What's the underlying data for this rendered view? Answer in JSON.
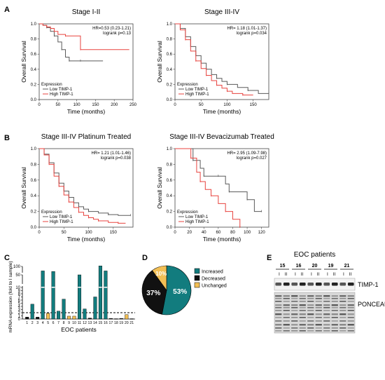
{
  "panel_labels": [
    "A",
    "B",
    "C",
    "D",
    "E"
  ],
  "km_legend": {
    "title": "Expression",
    "low": "Low TIMP-1",
    "high": "High TIMP-1"
  },
  "colors": {
    "low": "#5a5a5a",
    "high": "#e8433f",
    "teal": "#127c7e",
    "black": "#111111",
    "yellow": "#f2bf55"
  },
  "km_panels": [
    {
      "title": "Stage I-II",
      "hr": "HR=0.53 (0.23-1.21)",
      "p": "logrank p=0.13",
      "xlabel": "Time (months)",
      "ylabel": "Overall Survival",
      "xticks": [
        "0",
        "50",
        "100",
        "150",
        "200",
        "250"
      ],
      "yticks": [
        "0.0",
        "0.2",
        "0.4",
        "0.6",
        "0.8",
        "1.0"
      ]
    },
    {
      "title": "Stage III-IV",
      "hr": "HR= 1.18 (1.01-1.37)",
      "p": "logrank p=0.034",
      "xlabel": "Time (months)",
      "ylabel": "Overall Survival",
      "xticks": [
        "0",
        "50",
        "100",
        "150"
      ],
      "yticks": [
        "0.0",
        "0.2",
        "0.4",
        "0.6",
        "0.8",
        "1.0"
      ]
    },
    {
      "title": "Stage III-IV   Platinum Treated",
      "hr": "HR= 1.21 (1.01-1.46)",
      "p": "logrank p=0.038",
      "xlabel": "Time (months)",
      "ylabel": "Overall Survival",
      "xticks": [
        "0",
        "50",
        "100",
        "150"
      ],
      "yticks": [
        "0.0",
        "0.2",
        "0.4",
        "0.6",
        "0.8",
        "1.0"
      ]
    },
    {
      "title": "Stage III-IV   Bevacizumab Treated",
      "hr": "HR= 2.95 (1.09-7.98)",
      "p": "logrank p=0.027",
      "xlabel": "Time (months)",
      "ylabel": "Overall Survival",
      "xticks": [
        "0",
        "20",
        "40",
        "60",
        "80",
        "100",
        "120"
      ],
      "yticks": [
        "0.0",
        "0.2",
        "0.4",
        "0.6",
        "0.8",
        "1.0"
      ]
    }
  ],
  "chart_data": [
    {
      "type": "line",
      "title": "Stage I-II",
      "xlabel": "Time (months)",
      "ylabel": "Overall Survival",
      "xlim": [
        0,
        250
      ],
      "ylim": [
        0,
        1
      ],
      "series": [
        {
          "name": "Low TIMP-1",
          "x": [
            0,
            10,
            20,
            30,
            40,
            50,
            60,
            70,
            80,
            90,
            110,
            170
          ],
          "y": [
            1.0,
            0.98,
            0.95,
            0.9,
            0.84,
            0.76,
            0.66,
            0.56,
            0.51,
            0.51,
            0.51,
            0.51
          ]
        },
        {
          "name": "High TIMP-1",
          "x": [
            0,
            10,
            20,
            30,
            40,
            50,
            70,
            100,
            110,
            240
          ],
          "y": [
            1.0,
            0.98,
            0.96,
            0.94,
            0.9,
            0.86,
            0.84,
            0.84,
            0.66,
            0.66
          ]
        }
      ]
    },
    {
      "type": "line",
      "title": "Stage III-IV",
      "xlabel": "Time (months)",
      "ylabel": "Overall Survival",
      "xlim": [
        0,
        180
      ],
      "ylim": [
        0,
        1
      ],
      "series": [
        {
          "name": "Low TIMP-1",
          "x": [
            0,
            10,
            20,
            30,
            40,
            50,
            60,
            70,
            80,
            90,
            100,
            120,
            140,
            160,
            180
          ],
          "y": [
            1.0,
            0.94,
            0.83,
            0.7,
            0.58,
            0.48,
            0.4,
            0.33,
            0.28,
            0.24,
            0.2,
            0.16,
            0.12,
            0.08,
            0.08
          ]
        },
        {
          "name": "High TIMP-1",
          "x": [
            0,
            10,
            20,
            30,
            40,
            50,
            60,
            70,
            80,
            90,
            100,
            110,
            130,
            150
          ],
          "y": [
            1.0,
            0.92,
            0.79,
            0.64,
            0.51,
            0.41,
            0.32,
            0.25,
            0.19,
            0.15,
            0.11,
            0.08,
            0.06,
            0.06
          ]
        }
      ]
    },
    {
      "type": "line",
      "title": "Stage III-IV   Platinum Treated",
      "xlabel": "Time (months)",
      "ylabel": "Overall Survival",
      "xlim": [
        0,
        190
      ],
      "ylim": [
        0,
        1
      ],
      "series": [
        {
          "name": "Low TIMP-1",
          "x": [
            0,
            10,
            20,
            30,
            40,
            50,
            60,
            70,
            80,
            90,
            100,
            120,
            140,
            160,
            185
          ],
          "y": [
            1.0,
            0.93,
            0.82,
            0.69,
            0.56,
            0.46,
            0.38,
            0.31,
            0.26,
            0.23,
            0.2,
            0.18,
            0.16,
            0.15,
            0.15
          ]
        },
        {
          "name": "High TIMP-1",
          "x": [
            0,
            10,
            20,
            30,
            40,
            50,
            60,
            70,
            80,
            90,
            100,
            110,
            120,
            140,
            160,
            175
          ],
          "y": [
            1.0,
            0.92,
            0.8,
            0.65,
            0.52,
            0.41,
            0.32,
            0.25,
            0.19,
            0.15,
            0.12,
            0.1,
            0.08,
            0.06,
            0.05,
            0.05
          ]
        }
      ]
    },
    {
      "type": "line",
      "title": "Stage III-IV   Bevacizumab Treated",
      "xlabel": "Time (months)",
      "ylabel": "Overall Survival",
      "xlim": [
        0,
        130
      ],
      "ylim": [
        0,
        1
      ],
      "series": [
        {
          "name": "Low TIMP-1",
          "x": [
            0,
            20,
            25,
            35,
            40,
            50,
            60,
            70,
            75,
            90,
            100,
            110,
            120
          ],
          "y": [
            1.0,
            1.0,
            0.85,
            0.75,
            0.65,
            0.65,
            0.65,
            0.55,
            0.45,
            0.45,
            0.35,
            0.2,
            0.2
          ]
        },
        {
          "name": "High TIMP-1",
          "x": [
            0,
            15,
            22,
            30,
            35,
            42,
            50,
            60,
            70,
            80,
            90
          ],
          "y": [
            1.0,
            1.0,
            0.88,
            0.7,
            0.58,
            0.48,
            0.4,
            0.3,
            0.2,
            0.1,
            0.0
          ]
        }
      ]
    },
    {
      "type": "bar",
      "xlabel": "EOC patients",
      "ylabel": "mRNA expression (fold to I sample)",
      "categories": [
        "1",
        "2",
        "3",
        "4",
        "5",
        "6",
        "7",
        "8",
        "9",
        "10",
        "11",
        "12",
        "13",
        "14",
        "15",
        "16",
        "17",
        "18",
        "19",
        "20",
        "21"
      ],
      "values": [
        0.6,
        4.7,
        0.6,
        60,
        1.8,
        55,
        2.5,
        6.3,
        0.9,
        0.9,
        50,
        3.2,
        0.3,
        7,
        110,
        60,
        0.2,
        0.1,
        0.2,
        1.4,
        0.1
      ],
      "status": [
        "dec",
        "inc",
        "dec",
        "inc",
        "unc",
        "inc",
        "inc",
        "inc",
        "unc",
        "unc",
        "inc",
        "inc",
        "dec",
        "inc",
        "inc",
        "inc",
        "dec",
        "dec",
        "dec",
        "unc",
        "dec"
      ],
      "threshold": 2,
      "yticks": [
        "0",
        "1",
        "2",
        "3",
        "4",
        "5",
        "6",
        "7",
        "8",
        "9",
        "10",
        "50",
        "100"
      ]
    },
    {
      "type": "pie",
      "labels": [
        "Increased",
        "Decreased",
        "Unchanged"
      ],
      "values": [
        53,
        37,
        10
      ],
      "display": [
        "53%",
        "37%",
        "10%"
      ]
    }
  ],
  "western": {
    "title": "EOC patients",
    "patients": [
      "15",
      "16",
      "20",
      "19",
      "21"
    ],
    "lane_labels": [
      "I",
      "II"
    ],
    "band_labels": [
      "TIMP-1",
      "PONCEAU"
    ]
  }
}
